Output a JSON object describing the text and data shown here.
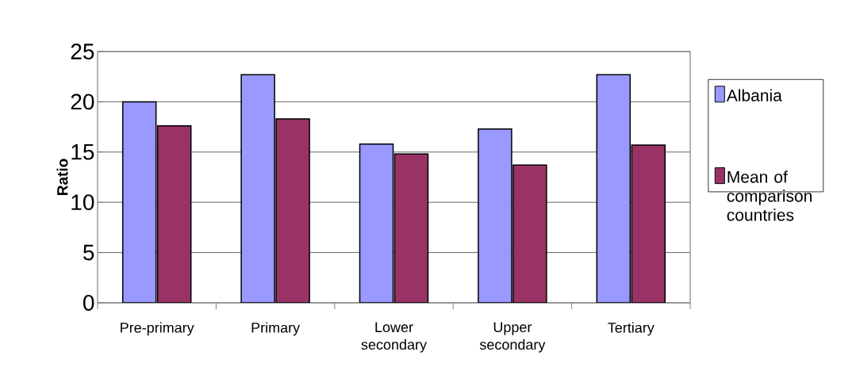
{
  "chart_data": {
    "type": "bar",
    "ylabel": "Ratio",
    "categories": [
      "Pre-primary",
      "Primary",
      "Lower secondary",
      "Upper secondary",
      "Tertiary"
    ],
    "series": [
      {
        "name": "Albania",
        "color": "#9999ff",
        "values": [
          20.0,
          22.7,
          15.8,
          17.3,
          22.7
        ]
      },
      {
        "name": "Mean of comparison countries",
        "color": "#993366",
        "values": [
          17.6,
          18.3,
          14.8,
          13.7,
          15.7
        ]
      }
    ],
    "ylim": [
      0,
      25
    ],
    "yticks": [
      0,
      5,
      10,
      15,
      20,
      25
    ],
    "grid": "y",
    "legend": "right"
  }
}
